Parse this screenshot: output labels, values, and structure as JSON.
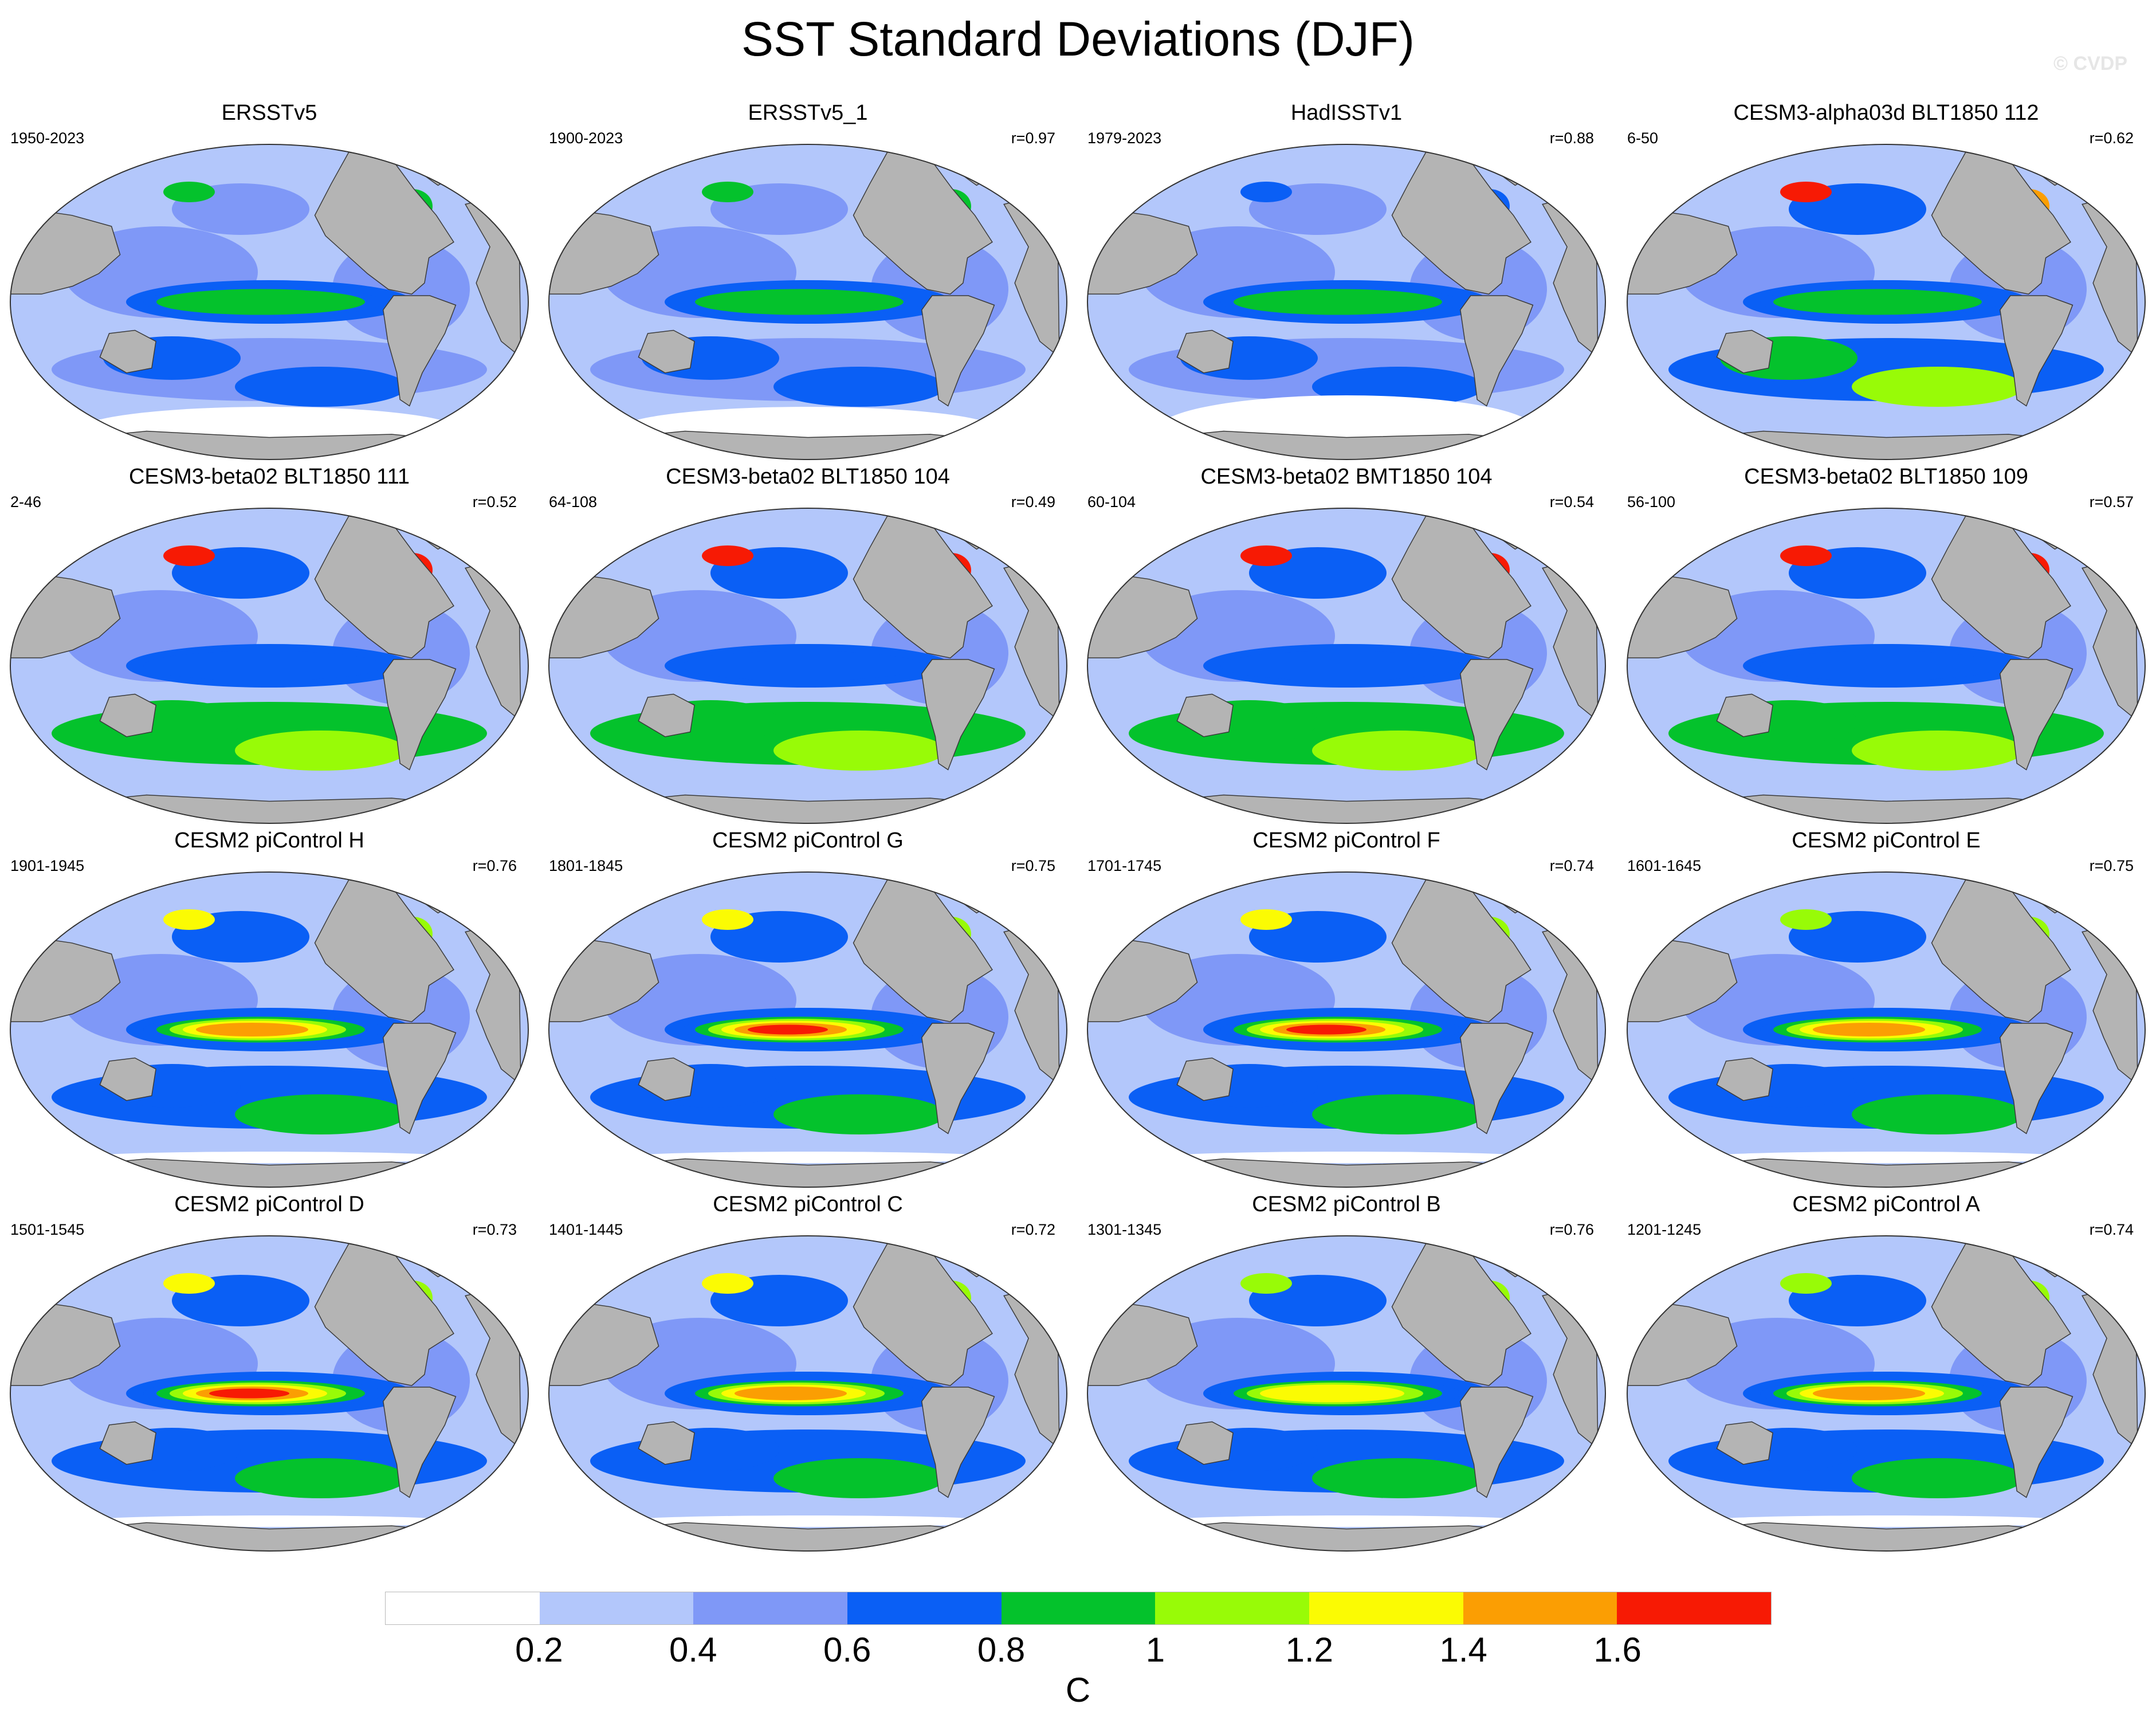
{
  "title": "SST Standard Deviations (DJF)",
  "watermark": "© CVDP",
  "colors": {
    "land": "#b4b4b4",
    "coast": "#3a3a3a"
  },
  "color_levels": [
    "0.2",
    "0.4",
    "0.6",
    "0.8",
    "1",
    "1.2",
    "1.4",
    "1.6"
  ],
  "color_bins": [
    "#ffffff",
    "#b3c7fb",
    "#7f98f7",
    "#0a5ff5",
    "#04c22c",
    "#98fb07",
    "#fbfb03",
    "#fb9e03",
    "#f71a04"
  ],
  "units": "C",
  "panels": [
    {
      "title": "ERSSTv5",
      "period": "1950-2023",
      "r": "",
      "enso": 0.9,
      "extra": 0.2,
      "blank": 0.2
    },
    {
      "title": "ERSSTv5_1",
      "period": "1900-2023",
      "r": "r=0.97",
      "enso": 0.9,
      "extra": 0.2,
      "blank": 0.2
    },
    {
      "title": "HadISSTv1",
      "period": "1979-2023",
      "r": "r=0.88",
      "enso": 1.0,
      "extra": 0.1,
      "blank": 0.3
    },
    {
      "title": "CESM3-alpha03d BLT1850 112",
      "period": "6-50",
      "r": "r=0.62",
      "enso": 0.9,
      "extra": 0.9,
      "blank": 0.0
    },
    {
      "title": "CESM3-beta02 BLT1850 111",
      "period": "2-46",
      "r": "r=0.52",
      "enso": 0.8,
      "extra": 1.0,
      "blank": 0.0
    },
    {
      "title": "CESM3-beta02 BLT1850 104",
      "period": "64-108",
      "r": "r=0.49",
      "enso": 0.8,
      "extra": 1.0,
      "blank": 0.0
    },
    {
      "title": "CESM3-beta02 BMT1850 104",
      "period": "60-104",
      "r": "r=0.54",
      "enso": 0.8,
      "extra": 1.0,
      "blank": 0.0
    },
    {
      "title": "CESM3-beta02 BLT1850 109",
      "period": "56-100",
      "r": "r=0.57",
      "enso": 0.8,
      "extra": 1.0,
      "blank": 0.0
    },
    {
      "title": "CESM2 piControl H",
      "period": "1901-1945",
      "r": "r=0.76",
      "enso": 1.6,
      "extra": 0.5,
      "blank": 0.05
    },
    {
      "title": "CESM2 piControl G",
      "period": "1801-1845",
      "r": "r=0.75",
      "enso": 1.7,
      "extra": 0.5,
      "blank": 0.05
    },
    {
      "title": "CESM2 piControl F",
      "period": "1701-1745",
      "r": "r=0.74",
      "enso": 1.7,
      "extra": 0.5,
      "blank": 0.05
    },
    {
      "title": "CESM2 piControl E",
      "period": "1601-1645",
      "r": "r=0.75",
      "enso": 1.5,
      "extra": 0.4,
      "blank": 0.05
    },
    {
      "title": "CESM2 piControl D",
      "period": "1501-1545",
      "r": "r=0.73",
      "enso": 1.8,
      "extra": 0.5,
      "blank": 0.05
    },
    {
      "title": "CESM2 piControl C",
      "period": "1401-1445",
      "r": "r=0.72",
      "enso": 1.5,
      "extra": 0.5,
      "blank": 0.05
    },
    {
      "title": "CESM2 piControl B",
      "period": "1301-1345",
      "r": "r=0.76",
      "enso": 1.4,
      "extra": 0.4,
      "blank": 0.05
    },
    {
      "title": "CESM2 piControl A",
      "period": "1201-1245",
      "r": "r=0.74",
      "enso": 1.5,
      "extra": 0.4,
      "blank": 0.05
    }
  ]
}
